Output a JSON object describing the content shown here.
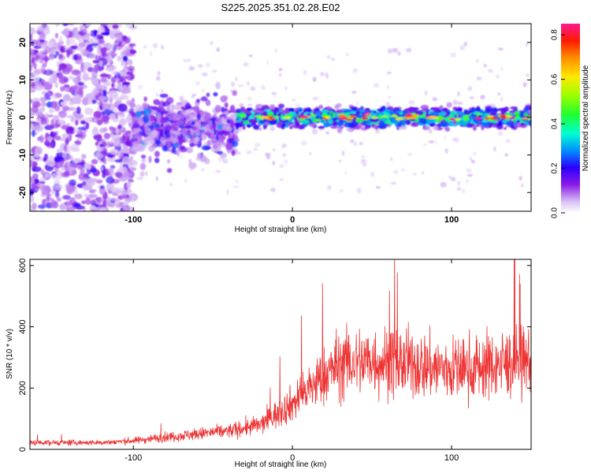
{
  "figure_title": "S225.2025.351.02.28.E02",
  "chart_data": [
    {
      "type": "heatmap",
      "name": "spectrogram",
      "xlabel": "Height of straight line (km)",
      "ylabel": "Frequency (Hz)",
      "xlim": [
        -165,
        150
      ],
      "ylim": [
        -25,
        25
      ],
      "xticks": [
        -100,
        0,
        100
      ],
      "yticks": [
        -20,
        -10,
        0,
        10,
        20
      ],
      "xtick_labels": [
        "-100",
        "0",
        "100"
      ],
      "ytick_labels": [
        "-20",
        "-10",
        "0",
        "10",
        "20"
      ],
      "colorbar": {
        "label": "Normalized spectral amplitude",
        "range": [
          0,
          0.85
        ],
        "ticks": [
          0.0,
          0.2,
          0.4,
          0.6,
          0.8
        ],
        "tick_labels": [
          "0.0",
          "0.2",
          "0.4",
          "0.6",
          "0.8"
        ]
      },
      "features": [
        {
          "description": "scattered low-amplitude noise",
          "x_range": [
            -165,
            -100
          ],
          "freq_range": [
            -25,
            25
          ],
          "amplitude": 0.15
        },
        {
          "description": "diffuse band",
          "x_range": [
            -100,
            -35
          ],
          "freq_center": -3,
          "freq_halfwidth": 5,
          "amplitude": 0.2
        },
        {
          "description": "strong narrow band near 0 Hz",
          "x_range": [
            -35,
            150
          ],
          "freq_center": 0,
          "freq_halfwidth": 2,
          "amplitude": 0.5,
          "peak_amplitude": 0.85
        }
      ]
    },
    {
      "type": "line",
      "name": "snr",
      "xlabel": "Height of straight line (km)",
      "ylabel": "SNR (10 * v/v)",
      "xlim": [
        -165,
        150
      ],
      "ylim": [
        0,
        620
      ],
      "xticks": [
        -100,
        0,
        100
      ],
      "yticks": [
        0,
        200,
        400,
        600
      ],
      "xtick_labels": [
        "-100",
        "0",
        "100"
      ],
      "ytick_labels": [
        "0",
        "200",
        "400",
        "600"
      ],
      "color": "#ee3333",
      "trend_x": [
        -165,
        -120,
        -100,
        -80,
        -60,
        -40,
        -20,
        0,
        20,
        30,
        50,
        70,
        100,
        120,
        150
      ],
      "trend_y": [
        22,
        22,
        28,
        40,
        50,
        60,
        80,
        150,
        240,
        280,
        290,
        280,
        260,
        270,
        290
      ],
      "noise_amplitude_fraction": 0.4
    }
  ]
}
